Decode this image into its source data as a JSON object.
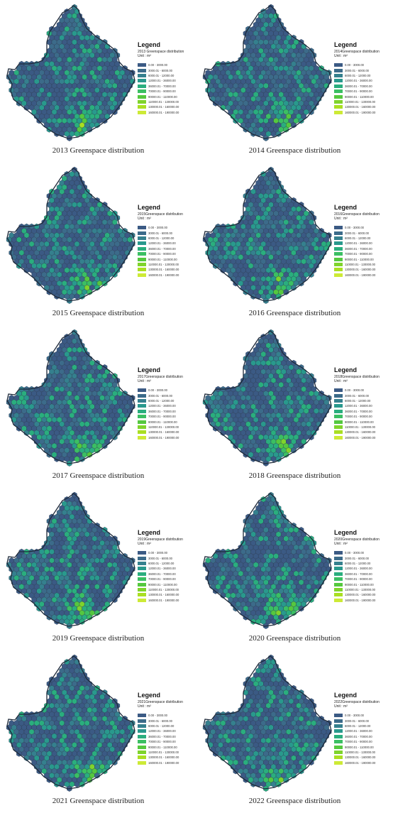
{
  "legend": {
    "title": "Legend",
    "unit_label": "Unit : m²",
    "classes": [
      {
        "label": "0.00 - 3000.00",
        "color": "#3b5a84"
      },
      {
        "label": "3000.01 - 6000.00",
        "color": "#3c6b8a"
      },
      {
        "label": "6000.01 - 12000.00",
        "color": "#35808e"
      },
      {
        "label": "12000.01 - 36000.00",
        "color": "#29998d"
      },
      {
        "label": "36000.01 - 70000.00",
        "color": "#2aae7e"
      },
      {
        "label": "70000.01 - 90000.00",
        "color": "#3bbf63"
      },
      {
        "label": "90000.01 - 110000.00",
        "color": "#55c83f"
      },
      {
        "label": "110000.01 - 130000.00",
        "color": "#7fd42c"
      },
      {
        "label": "130000.01 - 160000.00",
        "color": "#a9df22"
      },
      {
        "label": "160000.01 - 190000.00",
        "color": "#cdea36"
      }
    ]
  },
  "map_outline_color": "#1e2a3a",
  "panels": [
    {
      "year": "2013",
      "layer_name": "2013 Greenspace distribution",
      "caption": "2013  Greenspace distribution"
    },
    {
      "year": "2014",
      "layer_name": "2014Greenspace distribution",
      "caption": "2014  Greenspace distribution"
    },
    {
      "year": "2015",
      "layer_name": "2015Greenspace distribution",
      "caption": "2015  Greenspace distribution"
    },
    {
      "year": "2016",
      "layer_name": "2016Greenspace distribution",
      "caption": "2016  Greenspace distribution"
    },
    {
      "year": "2017",
      "layer_name": "2017Greenspace distribution",
      "caption": "2017  Greenspace distribution"
    },
    {
      "year": "2018",
      "layer_name": "2018Greenspace distribution",
      "caption": "2018  Greenspace distribution"
    },
    {
      "year": "2019",
      "layer_name": "2019Greenspace distribution",
      "caption": "2019  Greenspace distribution"
    },
    {
      "year": "2020",
      "layer_name": "2020Greenspace distribution",
      "caption": "2020  Greenspace distribution"
    },
    {
      "year": "2021",
      "layer_name": "2021Greenspace distribution",
      "caption": "2021  Greenspace distribution"
    },
    {
      "year": "2022",
      "layer_name": "2022Greenspace distribution",
      "caption": "2022  Greenspace distribution"
    }
  ]
}
